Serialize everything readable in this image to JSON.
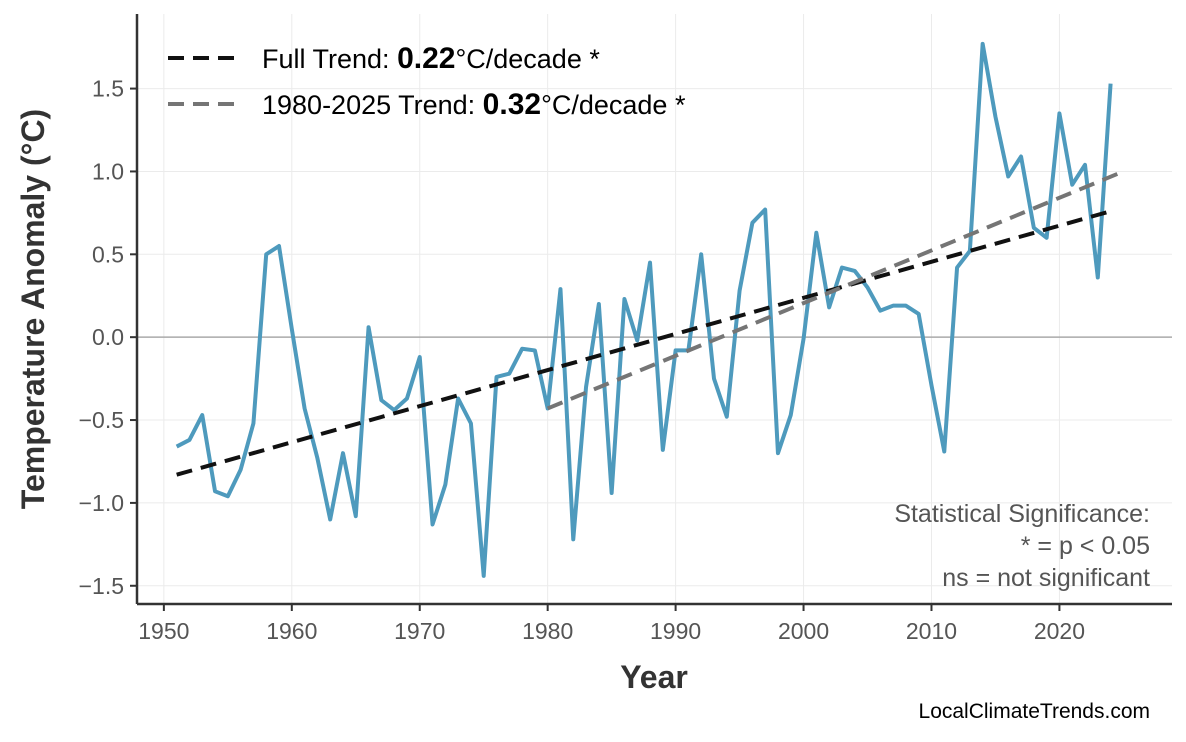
{
  "chart_data": {
    "type": "line",
    "xlabel": "Year",
    "ylabel": "Temperature Anomaly (°C)",
    "xlim": [
      1947.9,
      2028.8
    ],
    "ylim": [
      -1.61,
      1.95
    ],
    "xticks": [
      1950,
      1960,
      1970,
      1980,
      1990,
      2000,
      2010,
      2020
    ],
    "yticks": [
      -1.5,
      -1.0,
      -0.5,
      0.0,
      0.5,
      1.0,
      1.5
    ],
    "ytick_labels": [
      "−1.5",
      "−1.0",
      "−0.5",
      "0.0",
      "0.5",
      "1.0",
      "1.5"
    ],
    "grid": true,
    "zero_line": true,
    "legend_position": "top-left",
    "colors": {
      "anomaly": "#4e9abd",
      "full_trend": "#111111",
      "recent_trend": "#757575"
    },
    "series": [
      {
        "x": [
          1951,
          1952,
          1953,
          1954,
          1955,
          1956,
          1957,
          1958,
          1959,
          1960,
          1961,
          1962,
          1963,
          1964,
          1965,
          1966,
          1967,
          1968,
          1969,
          1970,
          1971,
          1972,
          1973,
          1974,
          1975,
          1976,
          1977,
          1978,
          1979,
          1980,
          1981,
          1982,
          1983,
          1984,
          1985,
          1986,
          1987,
          1988,
          1989,
          1990,
          1991,
          1992,
          1993,
          1994,
          1995,
          1996,
          1997,
          1998,
          1999,
          2000,
          2001,
          2002,
          2003,
          2004,
          2005,
          2006,
          2007,
          2008,
          2009,
          2010,
          2011,
          2012,
          2013,
          2014,
          2015,
          2016,
          2017,
          2018,
          2019,
          2020,
          2021,
          2022,
          2023,
          2024
        ],
        "values": [
          -0.66,
          -0.62,
          -0.47,
          -0.93,
          -0.96,
          -0.8,
          -0.52,
          0.5,
          0.55,
          0.05,
          -0.43,
          -0.73,
          -1.1,
          -0.7,
          -1.08,
          0.06,
          -0.38,
          -0.44,
          -0.37,
          -0.12,
          -1.13,
          -0.89,
          -0.37,
          -0.52,
          -1.44,
          -0.24,
          -0.22,
          -0.07,
          -0.08,
          -0.43,
          0.29,
          -1.22,
          -0.3,
          0.2,
          -0.94,
          0.23,
          -0.02,
          0.45,
          -0.68,
          -0.08,
          -0.08,
          0.5,
          -0.25,
          -0.48,
          0.28,
          0.69,
          0.77,
          -0.7,
          -0.47,
          -0.01,
          0.63,
          0.18,
          0.42,
          0.4,
          0.3,
          0.16,
          0.19,
          0.19,
          0.14,
          -0.29,
          -0.69,
          0.42,
          0.52,
          1.77,
          1.33,
          0.97,
          1.09,
          0.66,
          0.6,
          1.35,
          0.92,
          1.04,
          0.36,
          1.53
        ]
      }
    ],
    "trends": [
      {
        "prefix": "Full Trend: ",
        "value": "0.22",
        "suffix": "°C/decade *",
        "x": [
          1951,
          2024
        ],
        "y": [
          -0.83,
          0.76
        ],
        "style": "dashed"
      },
      {
        "prefix": "1980-2025 Trend: ",
        "value": "0.32",
        "suffix": "°C/decade *",
        "x": [
          1980,
          2025
        ],
        "y": [
          -0.43,
          1.0
        ],
        "style": "dashed"
      }
    ],
    "annotation": [
      "Statistical Significance:",
      "* = p < 0.05",
      "ns = not significant"
    ],
    "credit": "LocalClimateTrends.com"
  }
}
